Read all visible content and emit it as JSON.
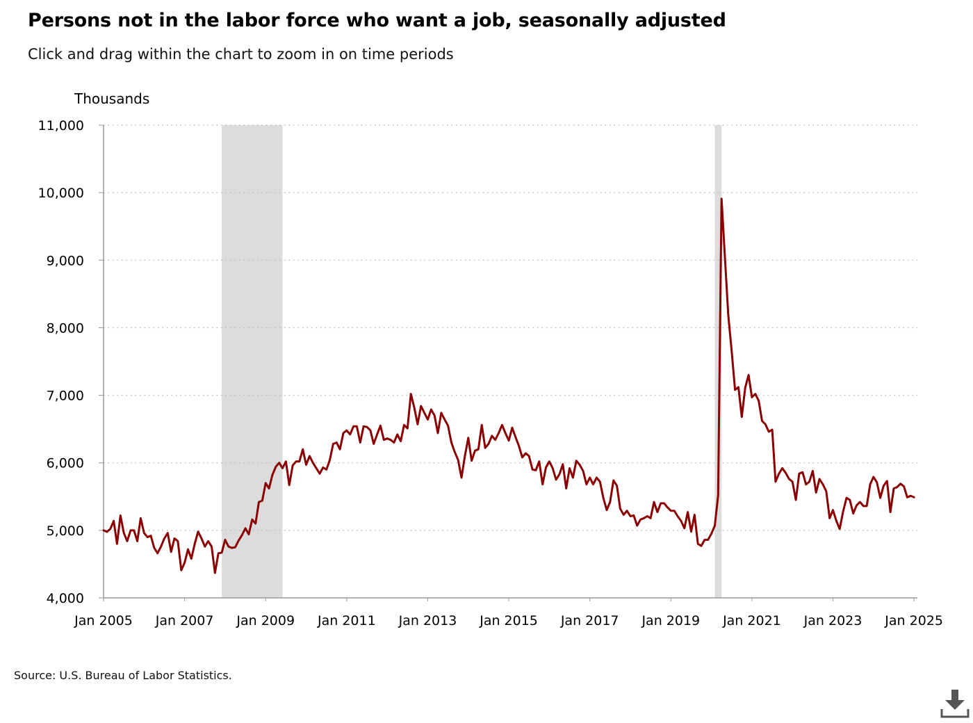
{
  "title": "Persons not in the labor force who want a job, seasonally adjusted",
  "subtitle": "Click and drag within the chart to zoom in on time periods",
  "source": "Source: U.S. Bureau of Labor Statistics.",
  "download_icon": "download-icon",
  "colors": {
    "line": "#8b0000",
    "recession": "#dcdcdc",
    "grid": "#bbbbbb",
    "axis": "#999999"
  },
  "chart_data": {
    "type": "line",
    "title": "Persons not in the labor force who want a job, seasonally adjusted",
    "ylabel": "Thousands",
    "xlabel": "",
    "ylim": [
      4000,
      11000
    ],
    "xlim": [
      "2005-01",
      "2025-02"
    ],
    "yticks": [
      4000,
      5000,
      6000,
      7000,
      8000,
      9000,
      10000,
      11000
    ],
    "ytick_labels": [
      "4,000",
      "5,000",
      "6,000",
      "7,000",
      "8,000",
      "9,000",
      "10,000",
      "11,000"
    ],
    "xticks": [
      "2005-01",
      "2007-01",
      "2009-01",
      "2011-01",
      "2013-01",
      "2015-01",
      "2017-01",
      "2019-01",
      "2021-01",
      "2023-01",
      "2025-01"
    ],
    "xtick_labels": [
      "Jan 2005",
      "Jan 2007",
      "Jan 2009",
      "Jan 2011",
      "Jan 2013",
      "Jan 2015",
      "Jan 2017",
      "Jan 2019",
      "Jan 2021",
      "Jan 2023",
      "Jan 2025"
    ],
    "grid": "horizontal dotted",
    "recessions": [
      {
        "start": "2007-12",
        "end": "2009-06"
      },
      {
        "start": "2020-02",
        "end": "2020-04"
      }
    ],
    "series": [
      {
        "start": "2005-01",
        "frequency": "monthly",
        "values": [
          5000,
          4980,
          5020,
          5140,
          4800,
          5220,
          4960,
          4840,
          5000,
          5000,
          4840,
          5180,
          4960,
          4900,
          4920,
          4740,
          4660,
          4760,
          4880,
          4960,
          4680,
          4880,
          4840,
          4410,
          4520,
          4720,
          4580,
          4800,
          4980,
          4880,
          4760,
          4840,
          4760,
          4370,
          4660,
          4670,
          4860,
          4760,
          4740,
          4750,
          4850,
          4930,
          5030,
          4940,
          5160,
          5100,
          5420,
          5440,
          5700,
          5620,
          5820,
          5940,
          6000,
          5920,
          6020,
          5670,
          5960,
          6020,
          6020,
          6200,
          5970,
          6100,
          6000,
          5920,
          5840,
          5930,
          5900,
          6040,
          6280,
          6300,
          6200,
          6440,
          6480,
          6420,
          6540,
          6540,
          6300,
          6540,
          6530,
          6480,
          6280,
          6420,
          6550,
          6340,
          6360,
          6340,
          6300,
          6420,
          6320,
          6560,
          6510,
          7020,
          6820,
          6570,
          6840,
          6740,
          6640,
          6790,
          6700,
          6440,
          6740,
          6640,
          6550,
          6300,
          6160,
          6040,
          5780,
          6100,
          6370,
          6030,
          6180,
          6200,
          6560,
          6220,
          6280,
          6400,
          6340,
          6440,
          6560,
          6440,
          6330,
          6520,
          6380,
          6250,
          6080,
          6140,
          6100,
          5900,
          5890,
          6020,
          5680,
          5930,
          6020,
          5920,
          5750,
          5830,
          5980,
          5620,
          5920,
          5780,
          6030,
          5970,
          5880,
          5680,
          5780,
          5680,
          5780,
          5720,
          5480,
          5300,
          5420,
          5740,
          5660,
          5320,
          5230,
          5290,
          5210,
          5220,
          5070,
          5160,
          5180,
          5210,
          5180,
          5420,
          5270,
          5400,
          5400,
          5340,
          5290,
          5290,
          5210,
          5140,
          5030,
          5270,
          4980,
          5230,
          4800,
          4770,
          4860,
          4860,
          4950,
          5070,
          5520,
          9910,
          9050,
          8180,
          7650,
          7080,
          7120,
          6680,
          7110,
          7300,
          6970,
          7020,
          6920,
          6620,
          6570,
          6460,
          6490,
          5720,
          5840,
          5920,
          5850,
          5760,
          5720,
          5450,
          5840,
          5860,
          5680,
          5720,
          5880,
          5560,
          5760,
          5680,
          5580,
          5180,
          5300,
          5140,
          5020,
          5280,
          5480,
          5450,
          5250,
          5370,
          5420,
          5360,
          5360,
          5680,
          5790,
          5710,
          5480,
          5660,
          5730,
          5270,
          5620,
          5640,
          5690,
          5650,
          5490,
          5510,
          5490
        ]
      }
    ]
  }
}
